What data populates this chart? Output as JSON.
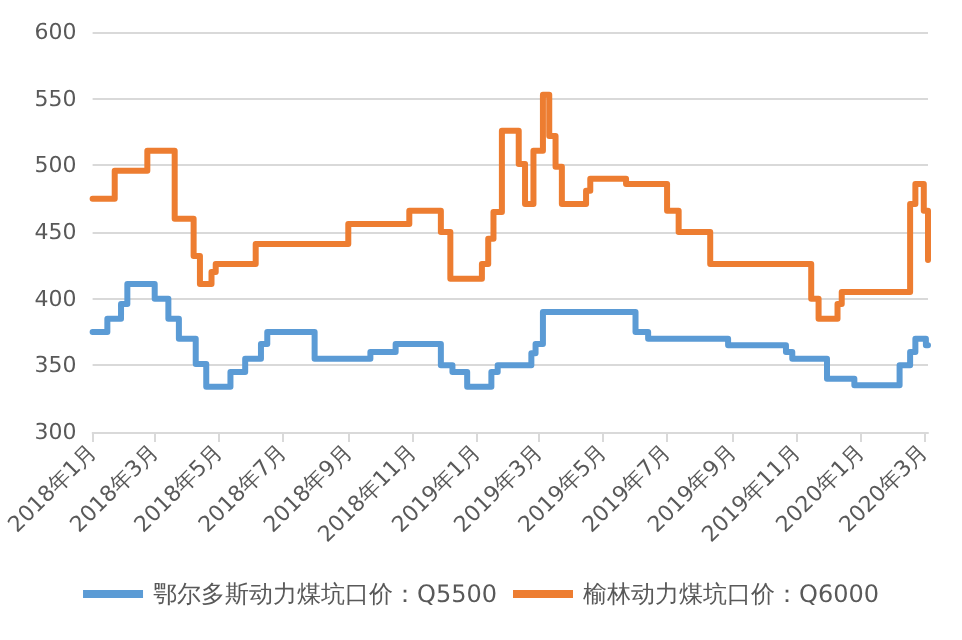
{
  "chart_data": {
    "type": "step",
    "xlim": [
      "2018-01-01",
      "2020-03-05"
    ],
    "xticks": [
      {
        "value": "2018-01",
        "label": "2018年1月"
      },
      {
        "value": "2018-03",
        "label": "2018年3月"
      },
      {
        "value": "2018-05",
        "label": "2018年5月"
      },
      {
        "value": "2018-07",
        "label": "2018年7月"
      },
      {
        "value": "2018-09",
        "label": "2018年9月"
      },
      {
        "value": "2018-11",
        "label": "2018年11月"
      },
      {
        "value": "2019-01",
        "label": "2019年1月"
      },
      {
        "value": "2019-03",
        "label": "2019年3月"
      },
      {
        "value": "2019-05",
        "label": "2019年5月"
      },
      {
        "value": "2019-07",
        "label": "2019年7月"
      },
      {
        "value": "2019-09",
        "label": "2019年9月"
      },
      {
        "value": "2019-11",
        "label": "2019年11月"
      },
      {
        "value": "2020-01",
        "label": "2020年1月"
      },
      {
        "value": "2020-03",
        "label": "2020年3月"
      }
    ],
    "ylim": [
      300,
      600
    ],
    "yticks": [
      300,
      350,
      400,
      450,
      500,
      550,
      600
    ],
    "grid": "y",
    "legend": "bottom",
    "marker": "none",
    "line_style": "solid",
    "series": [
      {
        "name": "鄂尔多斯动力煤坑口价：Q5500",
        "color": "#5b9bd5",
        "x": [
          "2018-01-01",
          "2018-01-15",
          "2018-01-28",
          "2018-02-03",
          "2018-03-01",
          "2018-03-14",
          "2018-03-24",
          "2018-04-09",
          "2018-04-19",
          "2018-05-12",
          "2018-05-26",
          "2018-06-10",
          "2018-06-16",
          "2018-07-31",
          "2018-09-22",
          "2018-10-16",
          "2018-11-28",
          "2018-12-09",
          "2018-12-23",
          "2019-01-15",
          "2019-01-21",
          "2019-02-22",
          "2019-02-26",
          "2019-03-05",
          "2019-06-01",
          "2019-06-13",
          "2019-08-28",
          "2019-10-22",
          "2019-10-28",
          "2019-11-30",
          "2019-12-26",
          "2020-02-07",
          "2020-02-17",
          "2020-02-22",
          "2020-03-03",
          "2020-03-05"
        ],
        "values": [
          375,
          385,
          396,
          411,
          400,
          385,
          370,
          351,
          334,
          345,
          355,
          366,
          375,
          355,
          360,
          366,
          350,
          345,
          334,
          345,
          350,
          359,
          366,
          390,
          375,
          370,
          365,
          360,
          355,
          340,
          335,
          350,
          360,
          370,
          365,
          365
        ]
      },
      {
        "name": "榆林动力煤坑口价：Q6000",
        "color": "#ed7d31",
        "x": [
          "2018-01-01",
          "2018-01-22",
          "2018-02-22",
          "2018-03-20",
          "2018-04-07",
          "2018-04-13",
          "2018-04-24",
          "2018-04-28",
          "2018-06-05",
          "2018-09-01",
          "2018-10-29",
          "2018-11-28",
          "2018-12-07",
          "2019-01-06",
          "2019-01-12",
          "2019-01-17",
          "2019-01-25",
          "2019-02-10",
          "2019-02-16",
          "2019-02-24",
          "2019-03-05",
          "2019-03-11",
          "2019-03-17",
          "2019-03-23",
          "2019-04-15",
          "2019-04-19",
          "2019-05-23",
          "2019-07-01",
          "2019-07-12",
          "2019-08-11",
          "2019-11-15",
          "2019-11-22",
          "2019-12-10",
          "2019-12-14",
          "2020-02-17",
          "2020-02-22",
          "2020-03-01",
          "2020-03-05"
        ],
        "values": [
          475,
          496,
          511,
          460,
          432,
          411,
          420,
          426,
          441,
          456,
          466,
          450,
          415,
          426,
          445,
          465,
          526,
          501,
          471,
          511,
          553,
          522,
          499,
          471,
          481,
          490,
          486,
          466,
          450,
          426,
          400,
          385,
          396,
          405,
          471,
          486,
          466,
          429
        ]
      }
    ]
  }
}
